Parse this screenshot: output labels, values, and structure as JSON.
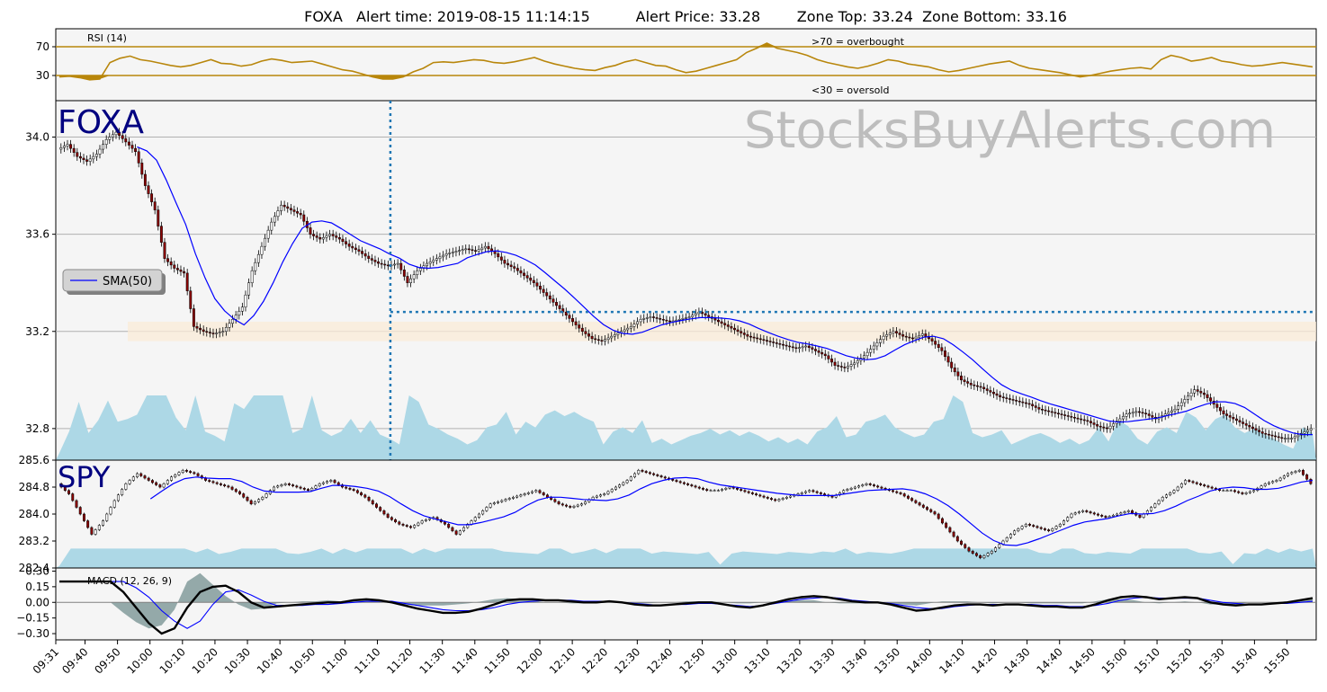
{
  "chart_data": {
    "type": "candlestick",
    "title": "FOXA   Alert time: 2019-08-15 11:14:15          Alert Price: 33.28        Zone Top: 33.24  Zone Bottom: 33.16",
    "watermark": "StocksBuyAlerts.com",
    "alert": {
      "time": "11:14",
      "price": 33.28,
      "zone_top": 33.24,
      "zone_bottom": 33.16
    },
    "x_ticks": [
      "09:31",
      "09:40",
      "09:50",
      "10:00",
      "10:10",
      "10:20",
      "10:30",
      "10:40",
      "10:50",
      "11:00",
      "11:10",
      "11:20",
      "11:30",
      "11:40",
      "11:50",
      "12:00",
      "12:10",
      "12:20",
      "12:30",
      "12:40",
      "12:50",
      "13:00",
      "13:10",
      "13:20",
      "13:30",
      "13:40",
      "13:50",
      "14:00",
      "14:10",
      "14:20",
      "14:30",
      "14:40",
      "14:50",
      "15:00",
      "15:10",
      "15:20",
      "15:30",
      "15:40",
      "15:50"
    ],
    "rsi": {
      "label": "RSI (14)",
      "ylim": [
        0,
        100
      ],
      "yticks": [
        30,
        70
      ],
      "overbought_label": ">70 = overbought",
      "oversold_label": "<30 = oversold",
      "values": [
        28,
        29,
        27,
        24,
        25,
        48,
        54,
        57,
        52,
        50,
        47,
        44,
        42,
        44,
        48,
        52,
        47,
        46,
        43,
        45,
        50,
        53,
        51,
        48,
        49,
        50,
        46,
        42,
        38,
        36,
        32,
        28,
        25,
        25,
        28,
        35,
        40,
        48,
        49,
        48,
        50,
        52,
        51,
        48,
        47,
        49,
        52,
        55,
        50,
        46,
        43,
        40,
        38,
        37,
        41,
        44,
        49,
        52,
        48,
        44,
        43,
        38,
        34,
        36,
        40,
        44,
        48,
        52,
        62,
        68,
        75,
        68,
        65,
        62,
        58,
        52,
        48,
        45,
        42,
        40,
        43,
        47,
        52,
        50,
        46,
        44,
        42,
        38,
        35,
        37,
        40,
        43,
        46,
        48,
        50,
        44,
        40,
        38,
        36,
        34,
        31,
        28,
        30,
        33,
        36,
        38,
        40,
        41,
        39,
        52,
        58,
        55,
        50,
        52,
        55,
        50,
        48,
        45,
        43,
        44,
        46,
        48,
        46,
        44,
        42
      ]
    },
    "foxa": {
      "label": "FOXA",
      "ylim": [
        32.67,
        33.15
      ],
      "yticks": [
        32.8,
        33.2,
        33.6,
        34.0
      ],
      "legend": "SMA(50)",
      "closes": [
        33.95,
        33.97,
        33.92,
        33.9,
        33.93,
        33.99,
        34.02,
        33.98,
        33.94,
        33.8,
        33.7,
        33.5,
        33.46,
        33.44,
        33.22,
        33.2,
        33.19,
        33.2,
        33.25,
        33.3,
        33.45,
        33.55,
        33.65,
        33.72,
        33.7,
        33.68,
        33.6,
        33.58,
        33.6,
        33.58,
        33.55,
        33.53,
        33.5,
        33.48,
        33.47,
        33.48,
        33.4,
        33.45,
        33.48,
        33.5,
        33.52,
        33.53,
        33.54,
        33.53,
        33.55,
        33.52,
        33.48,
        33.46,
        33.43,
        33.4,
        33.36,
        33.32,
        33.28,
        33.24,
        33.2,
        33.17,
        33.16,
        33.18,
        33.2,
        33.22,
        33.25,
        33.26,
        33.25,
        33.24,
        33.25,
        33.26,
        33.28,
        33.26,
        33.24,
        33.22,
        33.2,
        33.18,
        33.17,
        33.16,
        33.15,
        33.14,
        33.13,
        33.14,
        33.12,
        33.1,
        33.06,
        33.05,
        33.07,
        33.1,
        33.14,
        33.18,
        33.2,
        33.18,
        33.17,
        33.19,
        33.16,
        33.12,
        33.05,
        33.0,
        32.98,
        32.97,
        32.95,
        32.93,
        32.92,
        32.91,
        32.9,
        32.88,
        32.87,
        32.86,
        32.85,
        32.84,
        32.83,
        32.81,
        32.8,
        32.83,
        32.86,
        32.87,
        32.86,
        32.84,
        32.86,
        32.88,
        32.92,
        32.96,
        32.94,
        32.9,
        32.86,
        32.84,
        32.82,
        32.8,
        32.78,
        32.77,
        32.76,
        32.76,
        32.78,
        32.8
      ]
    },
    "spy": {
      "label": "SPY",
      "ylim": [
        282.4,
        285.6
      ],
      "yticks": [
        282.4,
        283.2,
        284.0,
        284.8,
        285.6
      ],
      "closes": [
        284.9,
        284.6,
        284.0,
        283.4,
        283.8,
        284.4,
        284.9,
        285.2,
        285.0,
        284.8,
        285.1,
        285.3,
        285.2,
        285.0,
        284.9,
        284.8,
        284.6,
        284.3,
        284.5,
        284.8,
        284.9,
        284.8,
        284.7,
        284.9,
        285.0,
        284.8,
        284.7,
        284.5,
        284.2,
        283.9,
        283.7,
        283.6,
        283.8,
        283.9,
        283.7,
        283.4,
        283.7,
        284.0,
        284.3,
        284.4,
        284.5,
        284.6,
        284.7,
        284.5,
        284.3,
        284.2,
        284.3,
        284.5,
        284.6,
        284.8,
        285.0,
        285.3,
        285.2,
        285.1,
        285.0,
        284.9,
        284.8,
        284.7,
        284.7,
        284.8,
        284.7,
        284.6,
        284.5,
        284.4,
        284.5,
        284.6,
        284.7,
        284.6,
        284.5,
        284.7,
        284.8,
        284.9,
        284.8,
        284.7,
        284.6,
        284.4,
        284.2,
        284.0,
        283.6,
        283.2,
        282.9,
        282.7,
        282.9,
        283.2,
        283.5,
        283.7,
        283.6,
        283.5,
        283.7,
        284.0,
        284.1,
        284.0,
        283.9,
        284.0,
        284.1,
        283.9,
        284.2,
        284.5,
        284.7,
        285.0,
        284.9,
        284.8,
        284.7,
        284.7,
        284.6,
        284.7,
        284.9,
        285.0,
        285.2,
        285.3,
        284.9
      ]
    },
    "macd": {
      "label": "MACD (12, 26, 9)",
      "ylim": [
        -0.36,
        0.33
      ],
      "yticks": [
        -0.3,
        -0.15,
        0.0,
        0.15,
        0.3
      ],
      "ytick_labels": [
        "−0.30",
        "−0.15",
        "0.00",
        "0.15",
        "0.30"
      ],
      "macd": [
        0.2,
        0.2,
        0.2,
        0.2,
        0.2,
        0.1,
        -0.05,
        -0.2,
        -0.3,
        -0.25,
        -0.05,
        0.1,
        0.15,
        0.16,
        0.1,
        0.0,
        -0.05,
        -0.04,
        -0.03,
        -0.02,
        -0.01,
        0.0,
        0.0,
        0.02,
        0.03,
        0.02,
        0.0,
        -0.03,
        -0.06,
        -0.08,
        -0.1,
        -0.1,
        -0.09,
        -0.06,
        -0.02,
        0.02,
        0.03,
        0.03,
        0.02,
        0.02,
        0.01,
        0.0,
        0.0,
        0.01,
        0.0,
        -0.02,
        -0.03,
        -0.03,
        -0.02,
        -0.01,
        0.0,
        0.0,
        -0.02,
        -0.04,
        -0.05,
        -0.03,
        0.0,
        0.03,
        0.05,
        0.06,
        0.05,
        0.03,
        0.01,
        0.0,
        0.0,
        -0.02,
        -0.05,
        -0.08,
        -0.07,
        -0.05,
        -0.03,
        -0.02,
        -0.02,
        -0.03,
        -0.02,
        -0.02,
        -0.03,
        -0.04,
        -0.04,
        -0.05,
        -0.05,
        -0.02,
        0.02,
        0.05,
        0.06,
        0.05,
        0.03,
        0.04,
        0.05,
        0.04,
        0.0,
        -0.02,
        -0.03,
        -0.02,
        -0.02,
        -0.01,
        0.0,
        0.02,
        0.04
      ],
      "signal": [
        0.2,
        0.2,
        0.2,
        0.2,
        0.2,
        0.2,
        0.14,
        0.05,
        -0.08,
        -0.18,
        -0.25,
        -0.18,
        -0.02,
        0.1,
        0.12,
        0.07,
        0.01,
        -0.03,
        -0.03,
        -0.03,
        -0.02,
        -0.02,
        -0.01,
        0.0,
        0.01,
        0.01,
        0.01,
        -0.01,
        -0.03,
        -0.05,
        -0.07,
        -0.08,
        -0.08,
        -0.07,
        -0.05,
        -0.02,
        0.0,
        0.01,
        0.02,
        0.02,
        0.02,
        0.01,
        0.01,
        0.01,
        0.0,
        -0.01,
        -0.02,
        -0.03,
        -0.02,
        -0.02,
        -0.01,
        -0.01,
        -0.02,
        -0.03,
        -0.04,
        -0.03,
        -0.01,
        0.01,
        0.03,
        0.04,
        0.05,
        0.04,
        0.02,
        0.01,
        0.0,
        -0.01,
        -0.03,
        -0.05,
        -0.06,
        -0.06,
        -0.04,
        -0.03,
        -0.02,
        -0.02,
        -0.02,
        -0.02,
        -0.02,
        -0.03,
        -0.03,
        -0.04,
        -0.04,
        -0.03,
        -0.01,
        0.02,
        0.04,
        0.05,
        0.04,
        0.04,
        0.04,
        0.04,
        0.02,
        0.0,
        -0.01,
        -0.02,
        -0.02,
        -0.01,
        -0.01,
        0.0,
        0.01
      ]
    }
  }
}
